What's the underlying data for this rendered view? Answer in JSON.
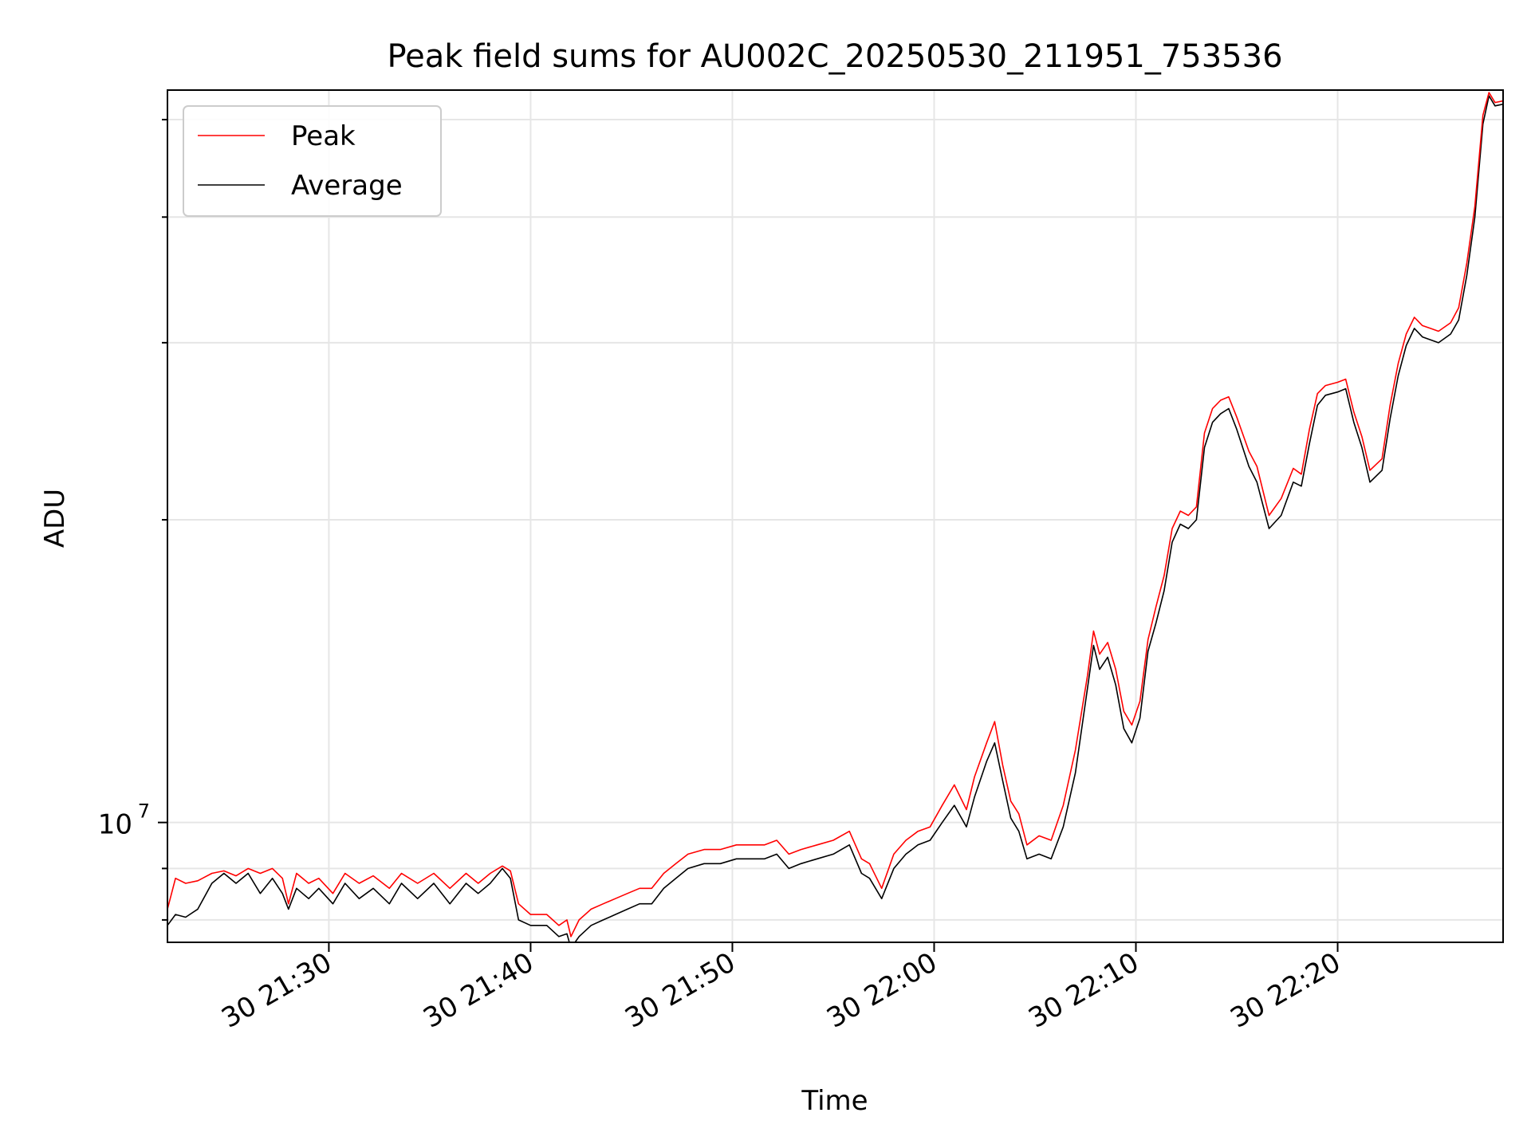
{
  "chart_data": {
    "type": "line",
    "title": "Peak field sums for AU002C_20250530_211951_753536",
    "xlabel": "Time",
    "ylabel": "ADU",
    "y_scale": "log",
    "ylim": [
      7600000,
      53500000
    ],
    "xlim_minutes": [
      -8.0,
      58.2
    ],
    "x_origin": "30 21:30",
    "x_ticks": [
      {
        "t": 0,
        "label": "30 21:30"
      },
      {
        "t": 10,
        "label": "30 21:40"
      },
      {
        "t": 20,
        "label": "30 21:50"
      },
      {
        "t": 30,
        "label": "30 22:00"
      },
      {
        "t": 40,
        "label": "30 22:10"
      },
      {
        "t": 50,
        "label": "30 22:20"
      }
    ],
    "y_major_ticks": [
      {
        "v": 10000000,
        "base": "10",
        "exp": "7"
      }
    ],
    "y_minor_ticks": [
      8000000,
      9000000,
      20000000,
      30000000,
      40000000,
      50000000
    ],
    "grid": true,
    "legend_position": "upper-left",
    "series": [
      {
        "name": "Peak",
        "color": "#ff0000",
        "points": [
          [
            -8.0,
            8.2
          ],
          [
            -7.6,
            8.8
          ],
          [
            -7.1,
            8.7
          ],
          [
            -6.5,
            8.75
          ],
          [
            -5.8,
            8.9
          ],
          [
            -5.2,
            8.95
          ],
          [
            -4.6,
            8.85
          ],
          [
            -4.0,
            9.0
          ],
          [
            -3.4,
            8.9
          ],
          [
            -2.8,
            9.0
          ],
          [
            -2.3,
            8.8
          ],
          [
            -2.0,
            8.3
          ],
          [
            -1.6,
            8.9
          ],
          [
            -1.0,
            8.7
          ],
          [
            -0.5,
            8.8
          ],
          [
            0.2,
            8.5
          ],
          [
            0.8,
            8.9
          ],
          [
            1.5,
            8.7
          ],
          [
            2.2,
            8.85
          ],
          [
            3.0,
            8.6
          ],
          [
            3.6,
            8.9
          ],
          [
            4.4,
            8.7
          ],
          [
            5.2,
            8.9
          ],
          [
            6.0,
            8.6
          ],
          [
            6.8,
            8.9
          ],
          [
            7.4,
            8.7
          ],
          [
            8.0,
            8.9
          ],
          [
            8.6,
            9.05
          ],
          [
            9.0,
            8.95
          ],
          [
            9.4,
            8.3
          ],
          [
            10.0,
            8.1
          ],
          [
            10.8,
            8.1
          ],
          [
            11.4,
            7.9
          ],
          [
            11.8,
            8.0
          ],
          [
            12.0,
            7.7
          ],
          [
            12.4,
            8.0
          ],
          [
            13.0,
            8.2
          ],
          [
            13.6,
            8.3
          ],
          [
            14.2,
            8.4
          ],
          [
            14.8,
            8.5
          ],
          [
            15.4,
            8.6
          ],
          [
            16.0,
            8.6
          ],
          [
            16.6,
            8.9
          ],
          [
            17.2,
            9.1
          ],
          [
            17.8,
            9.3
          ],
          [
            18.6,
            9.4
          ],
          [
            19.4,
            9.4
          ],
          [
            20.2,
            9.5
          ],
          [
            20.8,
            9.5
          ],
          [
            21.6,
            9.5
          ],
          [
            22.2,
            9.6
          ],
          [
            22.8,
            9.3
          ],
          [
            23.4,
            9.4
          ],
          [
            24.2,
            9.5
          ],
          [
            25.0,
            9.6
          ],
          [
            25.8,
            9.8
          ],
          [
            26.4,
            9.2
          ],
          [
            26.8,
            9.1
          ],
          [
            27.4,
            8.6
          ],
          [
            28.0,
            9.3
          ],
          [
            28.6,
            9.6
          ],
          [
            29.2,
            9.8
          ],
          [
            29.8,
            9.9
          ],
          [
            30.4,
            10.4
          ],
          [
            31.0,
            10.9
          ],
          [
            31.6,
            10.3
          ],
          [
            32.0,
            11.1
          ],
          [
            32.6,
            12.0
          ],
          [
            33.0,
            12.6
          ],
          [
            33.4,
            11.4
          ],
          [
            33.8,
            10.5
          ],
          [
            34.2,
            10.2
          ],
          [
            34.6,
            9.5
          ],
          [
            35.2,
            9.7
          ],
          [
            35.8,
            9.6
          ],
          [
            36.4,
            10.4
          ],
          [
            37.0,
            11.8
          ],
          [
            37.6,
            14.0
          ],
          [
            37.9,
            15.5
          ],
          [
            38.2,
            14.7
          ],
          [
            38.6,
            15.1
          ],
          [
            39.0,
            14.2
          ],
          [
            39.4,
            12.9
          ],
          [
            39.8,
            12.5
          ],
          [
            40.2,
            13.2
          ],
          [
            40.6,
            15.2
          ],
          [
            41.0,
            16.4
          ],
          [
            41.4,
            17.6
          ],
          [
            41.8,
            19.6
          ],
          [
            42.2,
            20.4
          ],
          [
            42.6,
            20.2
          ],
          [
            43.0,
            20.6
          ],
          [
            43.4,
            24.4
          ],
          [
            43.8,
            25.8
          ],
          [
            44.2,
            26.3
          ],
          [
            44.6,
            26.5
          ],
          [
            45.0,
            25.3
          ],
          [
            45.6,
            23.4
          ],
          [
            46.0,
            22.6
          ],
          [
            46.6,
            20.2
          ],
          [
            47.2,
            21.0
          ],
          [
            47.8,
            22.5
          ],
          [
            48.2,
            22.2
          ],
          [
            48.6,
            24.6
          ],
          [
            49.0,
            26.7
          ],
          [
            49.4,
            27.2
          ],
          [
            50.0,
            27.4
          ],
          [
            50.4,
            27.6
          ],
          [
            50.8,
            25.6
          ],
          [
            51.2,
            24.2
          ],
          [
            51.6,
            22.4
          ],
          [
            52.2,
            23.0
          ],
          [
            52.6,
            26.0
          ],
          [
            53.0,
            28.6
          ],
          [
            53.4,
            30.6
          ],
          [
            53.8,
            31.8
          ],
          [
            54.2,
            31.2
          ],
          [
            54.6,
            31.0
          ],
          [
            55.0,
            30.8
          ],
          [
            55.6,
            31.4
          ],
          [
            56.0,
            32.5
          ],
          [
            56.4,
            36.0
          ],
          [
            56.8,
            41.0
          ],
          [
            57.2,
            50.5
          ],
          [
            57.5,
            53.2
          ],
          [
            57.8,
            52.0
          ],
          [
            58.2,
            52.2
          ]
        ]
      },
      {
        "name": "Average",
        "color": "#000000",
        "points": [
          [
            -8.0,
            7.9
          ],
          [
            -7.6,
            8.1
          ],
          [
            -7.1,
            8.05
          ],
          [
            -6.5,
            8.2
          ],
          [
            -5.8,
            8.7
          ],
          [
            -5.2,
            8.9
          ],
          [
            -4.6,
            8.7
          ],
          [
            -4.0,
            8.9
          ],
          [
            -3.4,
            8.5
          ],
          [
            -2.8,
            8.8
          ],
          [
            -2.3,
            8.5
          ],
          [
            -2.0,
            8.2
          ],
          [
            -1.6,
            8.6
          ],
          [
            -1.0,
            8.4
          ],
          [
            -0.5,
            8.6
          ],
          [
            0.2,
            8.3
          ],
          [
            0.8,
            8.7
          ],
          [
            1.5,
            8.4
          ],
          [
            2.2,
            8.6
          ],
          [
            3.0,
            8.3
          ],
          [
            3.6,
            8.7
          ],
          [
            4.4,
            8.4
          ],
          [
            5.2,
            8.7
          ],
          [
            6.0,
            8.3
          ],
          [
            6.8,
            8.7
          ],
          [
            7.4,
            8.5
          ],
          [
            8.0,
            8.7
          ],
          [
            8.6,
            9.0
          ],
          [
            9.0,
            8.8
          ],
          [
            9.4,
            8.0
          ],
          [
            10.0,
            7.9
          ],
          [
            10.8,
            7.9
          ],
          [
            11.4,
            7.7
          ],
          [
            11.8,
            7.75
          ],
          [
            12.0,
            7.5
          ],
          [
            12.4,
            7.7
          ],
          [
            13.0,
            7.9
          ],
          [
            13.6,
            8.0
          ],
          [
            14.2,
            8.1
          ],
          [
            14.8,
            8.2
          ],
          [
            15.4,
            8.3
          ],
          [
            16.0,
            8.3
          ],
          [
            16.6,
            8.6
          ],
          [
            17.2,
            8.8
          ],
          [
            17.8,
            9.0
          ],
          [
            18.6,
            9.1
          ],
          [
            19.4,
            9.1
          ],
          [
            20.2,
            9.2
          ],
          [
            20.8,
            9.2
          ],
          [
            21.6,
            9.2
          ],
          [
            22.2,
            9.3
          ],
          [
            22.8,
            9.0
          ],
          [
            23.4,
            9.1
          ],
          [
            24.2,
            9.2
          ],
          [
            25.0,
            9.3
          ],
          [
            25.8,
            9.5
          ],
          [
            26.4,
            8.9
          ],
          [
            26.8,
            8.8
          ],
          [
            27.4,
            8.4
          ],
          [
            28.0,
            9.0
          ],
          [
            28.6,
            9.3
          ],
          [
            29.2,
            9.5
          ],
          [
            29.8,
            9.6
          ],
          [
            30.4,
            10.0
          ],
          [
            31.0,
            10.4
          ],
          [
            31.6,
            9.9
          ],
          [
            32.0,
            10.6
          ],
          [
            32.6,
            11.5
          ],
          [
            33.0,
            12.0
          ],
          [
            33.4,
            11.0
          ],
          [
            33.8,
            10.1
          ],
          [
            34.2,
            9.8
          ],
          [
            34.6,
            9.2
          ],
          [
            35.2,
            9.3
          ],
          [
            35.8,
            9.2
          ],
          [
            36.4,
            9.9
          ],
          [
            37.0,
            11.2
          ],
          [
            37.6,
            13.6
          ],
          [
            37.9,
            15.0
          ],
          [
            38.2,
            14.2
          ],
          [
            38.6,
            14.6
          ],
          [
            39.0,
            13.7
          ],
          [
            39.4,
            12.4
          ],
          [
            39.8,
            12.0
          ],
          [
            40.2,
            12.7
          ],
          [
            40.6,
            14.8
          ],
          [
            41.0,
            15.8
          ],
          [
            41.4,
            17.0
          ],
          [
            41.8,
            19.0
          ],
          [
            42.2,
            19.8
          ],
          [
            42.6,
            19.6
          ],
          [
            43.0,
            20.0
          ],
          [
            43.4,
            23.6
          ],
          [
            43.8,
            25.0
          ],
          [
            44.2,
            25.5
          ],
          [
            44.6,
            25.8
          ],
          [
            45.0,
            24.6
          ],
          [
            45.6,
            22.6
          ],
          [
            46.0,
            21.8
          ],
          [
            46.6,
            19.6
          ],
          [
            47.2,
            20.2
          ],
          [
            47.8,
            21.8
          ],
          [
            48.2,
            21.6
          ],
          [
            48.6,
            23.8
          ],
          [
            49.0,
            26.0
          ],
          [
            49.4,
            26.6
          ],
          [
            50.0,
            26.8
          ],
          [
            50.4,
            27.0
          ],
          [
            50.8,
            25.0
          ],
          [
            51.2,
            23.6
          ],
          [
            51.6,
            21.8
          ],
          [
            52.2,
            22.4
          ],
          [
            52.6,
            25.2
          ],
          [
            53.0,
            27.8
          ],
          [
            53.4,
            29.8
          ],
          [
            53.8,
            31.0
          ],
          [
            54.2,
            30.4
          ],
          [
            54.6,
            30.2
          ],
          [
            55.0,
            30.0
          ],
          [
            55.6,
            30.6
          ],
          [
            56.0,
            31.6
          ],
          [
            56.4,
            35.0
          ],
          [
            56.8,
            40.0
          ],
          [
            57.2,
            49.5
          ],
          [
            57.5,
            52.8
          ],
          [
            57.8,
            51.6
          ],
          [
            58.2,
            51.8
          ]
        ]
      }
    ],
    "values_note": "series point y values are in millions of ADU; x is minutes after 30 21:30"
  }
}
